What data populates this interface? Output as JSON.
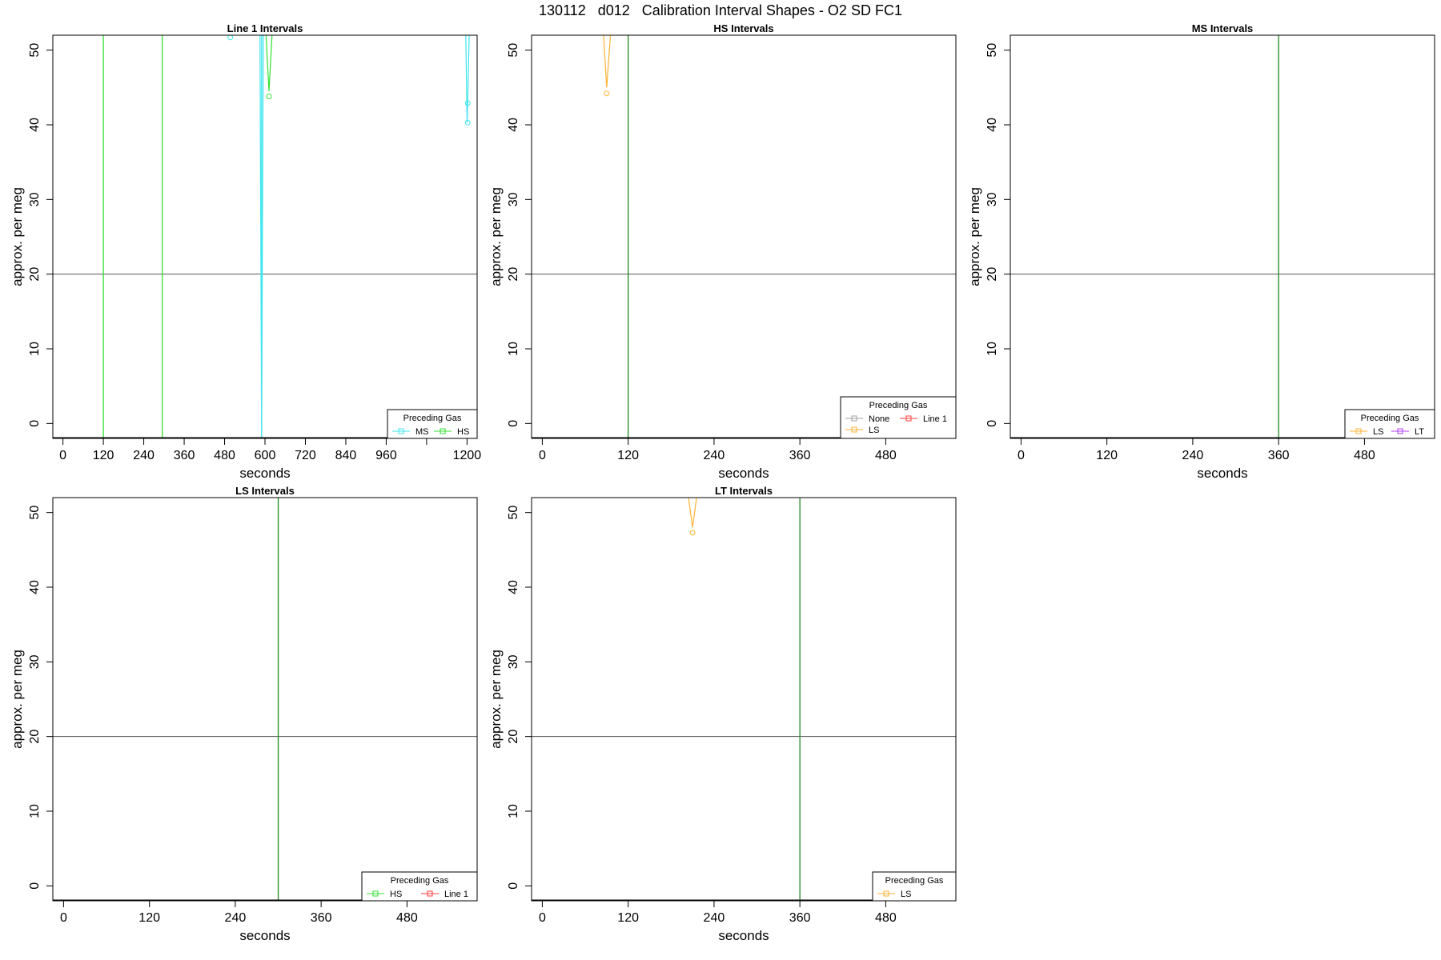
{
  "figure_title": "130112   d012   Calibration Interval Shapes - O2 SD FC1",
  "colors": {
    "None": "#a0a0a0",
    "Line 1": "#ff3b3b",
    "HS": "#33e033",
    "MS": "#3ee6ee",
    "LS": "#ffb233",
    "LT": "#b03bff",
    "guide_vertical": "#208a20",
    "guide_horizontal": "#555555"
  },
  "chart_data": [
    {
      "type": "line",
      "title": "Line 1 Intervals",
      "xlabel": "seconds",
      "ylabel": "approx. per meg",
      "xlim": [
        -30,
        1230
      ],
      "ylim": [
        -2,
        52
      ],
      "xticks": [
        0,
        120,
        240,
        360,
        480,
        600,
        720,
        840,
        960,
        1080,
        1200
      ],
      "xtick_labels": [
        "0",
        "120",
        "240",
        "360",
        "480",
        "600",
        "720",
        "840",
        "960",
        "",
        "1200"
      ],
      "yticks": [
        0,
        10,
        20,
        30,
        40,
        50
      ],
      "hline": 20,
      "vlines": [
        {
          "x": 120,
          "color_key": "HS"
        },
        {
          "x": 295,
          "color_key": "HS"
        },
        {
          "x": 590,
          "color_key": "MS"
        }
      ],
      "legend_title": "Preceding Gas",
      "legend": [
        "MS",
        "HS"
      ],
      "legend_position": "bottom-right",
      "series": [
        {
          "name": "MS",
          "color_key": "MS",
          "markers": true,
          "points": [
            [
              497,
              51.7
            ],
            [
              1202,
              40.3
            ],
            [
              1202,
              42.9
            ]
          ],
          "segments": [
            [
              [
                585,
                53
              ],
              [
                590,
                -2
              ],
              [
                595,
                53
              ]
            ],
            [
              [
                1196,
                53
              ],
              [
                1200,
                40.3
              ],
              [
                1202,
                42.9
              ],
              [
                1207,
                53
              ]
            ]
          ]
        },
        {
          "name": "HS",
          "color_key": "HS",
          "markers": true,
          "points": [
            [
              612,
              43.8
            ]
          ],
          "segments": [
            [
              [
                602,
                53
              ],
              [
                612,
                44.5
              ],
              [
                622,
                53
              ]
            ]
          ]
        }
      ]
    },
    {
      "type": "line",
      "title": "HS Intervals",
      "xlabel": "seconds",
      "ylabel": "approx. per meg",
      "xlim": [
        -15,
        578
      ],
      "ylim": [
        -2,
        52
      ],
      "xticks": [
        0,
        120,
        240,
        360,
        480
      ],
      "xtick_labels": [
        "0",
        "120",
        "240",
        "360",
        "480"
      ],
      "yticks": [
        0,
        10,
        20,
        30,
        40,
        50
      ],
      "hline": 20,
      "vlines": [
        {
          "x": 120,
          "color_key": "guide_vertical"
        }
      ],
      "legend_title": "Preceding Gas",
      "legend": [
        "None",
        "Line 1",
        "LS"
      ],
      "legend_position": "bottom-right",
      "series": [
        {
          "name": "LS",
          "color_key": "LS",
          "markers": true,
          "points": [
            [
              90,
              44.2
            ]
          ],
          "segments": [
            [
              [
                85,
                53
              ],
              [
                90,
                45
              ],
              [
                96,
                53
              ]
            ]
          ]
        }
      ]
    },
    {
      "type": "line",
      "title": "MS Intervals",
      "xlabel": "seconds",
      "ylabel": "approx. per meg",
      "xlim": [
        -15,
        578
      ],
      "ylim": [
        -2,
        52
      ],
      "xticks": [
        0,
        120,
        240,
        360,
        480
      ],
      "xtick_labels": [
        "0",
        "120",
        "240",
        "360",
        "480"
      ],
      "yticks": [
        0,
        10,
        20,
        30,
        40,
        50
      ],
      "hline": 20,
      "vlines": [
        {
          "x": 360,
          "color_key": "guide_vertical"
        }
      ],
      "legend_title": "Preceding Gas",
      "legend": [
        "LS",
        "LT"
      ],
      "legend_position": "bottom-right",
      "series": []
    },
    {
      "type": "line",
      "title": "LS Intervals",
      "xlabel": "seconds",
      "ylabel": "approx. per meg",
      "xlim": [
        -15,
        578
      ],
      "ylim": [
        -2,
        52
      ],
      "xticks": [
        0,
        120,
        240,
        360,
        480
      ],
      "xtick_labels": [
        "0",
        "120",
        "240",
        "360",
        "480"
      ],
      "yticks": [
        0,
        10,
        20,
        30,
        40,
        50
      ],
      "hline": 20,
      "vlines": [
        {
          "x": 300,
          "color_key": "guide_vertical"
        }
      ],
      "legend_title": "Preceding Gas",
      "legend": [
        "HS",
        "Line 1"
      ],
      "legend_position": "bottom-right",
      "series": []
    },
    {
      "type": "line",
      "title": "LT Intervals",
      "xlabel": "seconds",
      "ylabel": "approx. per meg",
      "xlim": [
        -15,
        578
      ],
      "ylim": [
        -2,
        52
      ],
      "xticks": [
        0,
        120,
        240,
        360,
        480
      ],
      "xtick_labels": [
        "0",
        "120",
        "240",
        "360",
        "480"
      ],
      "yticks": [
        0,
        10,
        20,
        30,
        40,
        50
      ],
      "hline": 20,
      "vlines": [
        {
          "x": 360,
          "color_key": "guide_vertical"
        }
      ],
      "legend_title": "Preceding Gas",
      "legend": [
        "LS"
      ],
      "legend_position": "bottom-right",
      "series": [
        {
          "name": "LS",
          "color_key": "LS",
          "markers": true,
          "points": [
            [
              210,
              47.3
            ]
          ],
          "segments": [
            [
              [
                203,
                53
              ],
              [
                210,
                48
              ],
              [
                217,
                53
              ]
            ]
          ]
        }
      ]
    }
  ]
}
